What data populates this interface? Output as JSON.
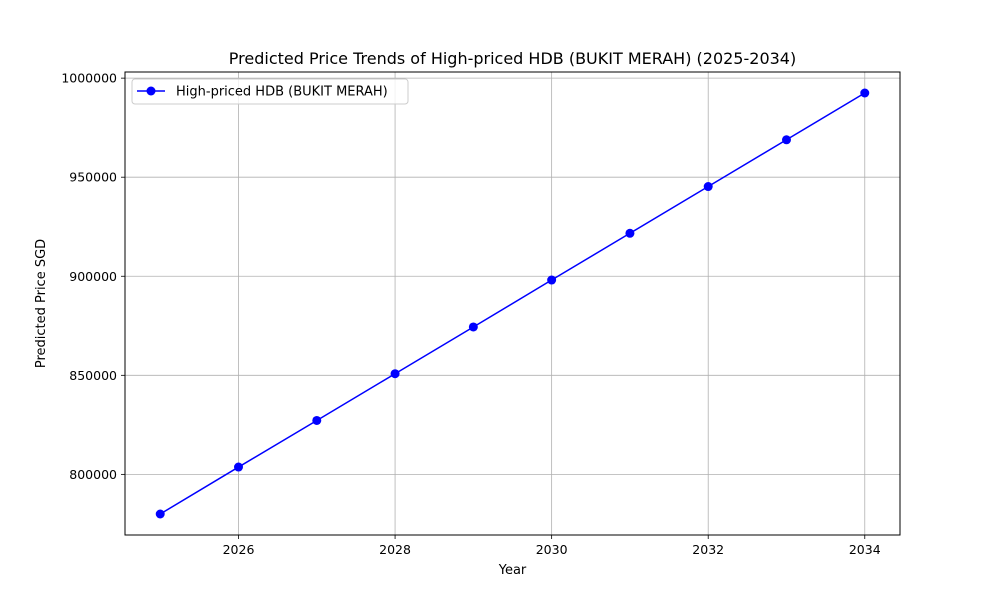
{
  "chart_data": {
    "type": "line",
    "title": "Predicted Price Trends of High-priced HDB (BUKIT MERAH) (2025-2034)",
    "xlabel": "Year",
    "ylabel": "Predicted Price SGD",
    "x": [
      2025,
      2026,
      2027,
      2028,
      2029,
      2030,
      2031,
      2032,
      2033,
      2034
    ],
    "series": [
      {
        "name": "High-priced HDB (BUKIT MERAH)",
        "color": "#0000ff",
        "marker": "circle",
        "values": [
          780000,
          803700,
          827200,
          850800,
          874400,
          898100,
          921700,
          945300,
          968900,
          992500
        ]
      }
    ],
    "xlim": [
      2024.55,
      2034.45
    ],
    "ylim": [
      769400,
      1003100
    ],
    "xticks": [
      2026,
      2028,
      2030,
      2032,
      2034
    ],
    "xtick_labels": [
      "2026",
      "2028",
      "2030",
      "2032",
      "2034"
    ],
    "yticks": [
      800000,
      850000,
      900000,
      950000,
      1000000
    ],
    "ytick_labels": [
      "800000",
      "850000",
      "900000",
      "950000",
      "1000000"
    ],
    "grid": true,
    "grid_color": "#b0b0b0",
    "legend_position": "upper-left"
  }
}
